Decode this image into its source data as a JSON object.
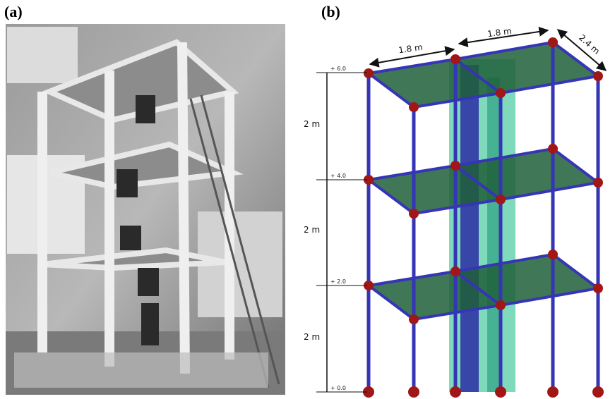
{
  "panels": [
    {
      "label": "(a)"
    },
    {
      "label": "(b)"
    }
  ],
  "dimensions": [
    "1.8 m",
    "1.8 m",
    "2.4 m"
  ],
  "story_heights": [
    "2 m",
    "2 m",
    "2 m"
  ],
  "levels": [
    "+ 6.0",
    "+ 4.0",
    "+ 2.0",
    "+ 0.0"
  ]
}
